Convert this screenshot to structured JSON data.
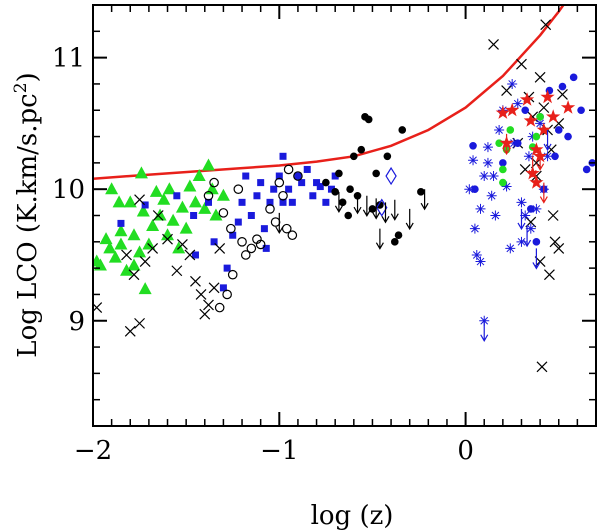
{
  "chart_data": {
    "type": "scatter",
    "title": "",
    "xlabel": "log (z)",
    "ylabel": "Log LCO (K.km/s.pc²)",
    "ylabel_parts": {
      "pre": "Log LCO (K.km/s.pc",
      "sup": "2",
      "post": ")"
    },
    "xlim": [
      -2.0,
      0.7
    ],
    "ylim": [
      8.2,
      11.4
    ],
    "xticks": [
      -2,
      -1,
      0
    ],
    "xtick_labels": [
      "−2",
      "−1",
      "0"
    ],
    "yticks": [
      9,
      10,
      11
    ],
    "ytick_labels": [
      "9",
      "10",
      "11"
    ],
    "grid": false,
    "legend": "none",
    "colors": {
      "curve": "#e8201a",
      "green": "#22dd22",
      "blue": "#1a1adc",
      "black": "#000000",
      "red": "#e8201a"
    },
    "curve": {
      "name": "detection limit",
      "x": [
        -2.0,
        -1.8,
        -1.6,
        -1.4,
        -1.2,
        -1.0,
        -0.8,
        -0.6,
        -0.4,
        -0.2,
        0.0,
        0.2,
        0.4,
        0.5,
        0.6,
        0.7
      ],
      "y": [
        10.08,
        10.1,
        10.12,
        10.14,
        10.16,
        10.18,
        10.21,
        10.25,
        10.33,
        10.45,
        10.62,
        10.86,
        11.17,
        11.35,
        11.55,
        11.78
      ]
    },
    "series": [
      {
        "name": "green triangles",
        "marker": "triangle",
        "color": "green",
        "points": [
          [
            -1.98,
            9.45
          ],
          [
            -1.96,
            9.42
          ],
          [
            -1.93,
            9.62
          ],
          [
            -1.91,
            9.55
          ],
          [
            -1.88,
            9.48
          ],
          [
            -1.85,
            9.58
          ],
          [
            -1.82,
            9.38
          ],
          [
            -1.85,
            9.68
          ],
          [
            -1.8,
            9.9
          ],
          [
            -1.78,
            9.65
          ],
          [
            -1.75,
            9.52
          ],
          [
            -1.73,
            9.83
          ],
          [
            -1.7,
            9.58
          ],
          [
            -1.68,
            9.72
          ],
          [
            -1.66,
            9.98
          ],
          [
            -1.64,
            9.8
          ],
          [
            -1.78,
            9.42
          ],
          [
            -1.72,
            9.24
          ],
          [
            -1.62,
            9.92
          ],
          [
            -1.59,
            10.0
          ],
          [
            -1.57,
            9.76
          ],
          [
            -1.54,
            9.55
          ],
          [
            -1.52,
            9.86
          ],
          [
            -1.5,
            9.7
          ],
          [
            -1.48,
            10.02
          ],
          [
            -1.45,
            9.9
          ],
          [
            -1.43,
            10.1
          ],
          [
            -1.4,
            9.85
          ],
          [
            -1.38,
            10.18
          ],
          [
            -1.36,
            10.0
          ],
          [
            -1.34,
            9.8
          ],
          [
            -1.9,
            10.0
          ],
          [
            -1.86,
            9.9
          ],
          [
            -1.74,
            10.12
          ],
          [
            -1.6,
            9.65
          ],
          [
            -1.3,
            9.95
          ]
        ]
      },
      {
        "name": "blue squares",
        "marker": "square",
        "color": "blue",
        "points": [
          [
            -1.85,
            9.74
          ],
          [
            -1.72,
            9.88
          ],
          [
            -1.55,
            9.95
          ],
          [
            -1.46,
            9.8
          ],
          [
            -1.38,
            9.9
          ],
          [
            -1.35,
            9.6
          ],
          [
            -1.28,
            9.4
          ],
          [
            -1.25,
            9.65
          ],
          [
            -1.22,
            9.75
          ],
          [
            -1.2,
            9.9
          ],
          [
            -1.18,
            10.1
          ],
          [
            -1.15,
            9.8
          ],
          [
            -1.12,
            9.95
          ],
          [
            -1.1,
            10.05
          ],
          [
            -1.08,
            9.7
          ],
          [
            -1.05,
            9.9
          ],
          [
            -1.03,
            10.0
          ],
          [
            -1.0,
            10.1
          ],
          [
            -0.98,
            10.25
          ],
          [
            -0.95,
            10.0
          ],
          [
            -0.93,
            9.9
          ],
          [
            -0.9,
            10.1
          ],
          [
            -0.88,
            10.05
          ],
          [
            -0.85,
            10.15
          ],
          [
            -0.82,
            9.95
          ],
          [
            -0.8,
            10.05
          ],
          [
            -0.78,
            10.02
          ],
          [
            -0.75,
            9.9
          ],
          [
            -0.72,
            10.0
          ],
          [
            -0.7,
            10.1
          ],
          [
            -1.45,
            9.5
          ],
          [
            -1.3,
            9.25
          ],
          [
            -0.98,
            9.9
          ],
          [
            -1.07,
            9.55
          ]
        ]
      },
      {
        "name": "open circles",
        "marker": "open-circle",
        "color": "black",
        "points": [
          [
            -1.38,
            9.95
          ],
          [
            -1.35,
            10.05
          ],
          [
            -1.3,
            9.82
          ],
          [
            -1.26,
            9.7
          ],
          [
            -1.22,
            10.0
          ],
          [
            -1.2,
            9.6
          ],
          [
            -1.18,
            9.5
          ],
          [
            -1.15,
            9.55
          ],
          [
            -1.12,
            9.62
          ],
          [
            -1.1,
            9.58
          ],
          [
            -1.05,
            9.85
          ],
          [
            -1.02,
            9.75
          ],
          [
            -0.98,
            9.95
          ],
          [
            -0.96,
            9.7
          ],
          [
            -0.93,
            9.65
          ],
          [
            -1.0,
            10.05
          ],
          [
            -0.9,
            10.1
          ],
          [
            -0.95,
            10.15
          ],
          [
            -1.25,
            9.35
          ],
          [
            -1.28,
            9.2
          ],
          [
            -1.32,
            9.1
          ]
        ]
      },
      {
        "name": "black filled circles",
        "marker": "filled-circle",
        "color": "black",
        "points": [
          [
            -0.75,
            10.05
          ],
          [
            -0.7,
            9.98
          ],
          [
            -0.68,
            10.12
          ],
          [
            -0.66,
            9.9
          ],
          [
            -0.63,
            9.8
          ],
          [
            -0.62,
            10.0
          ],
          [
            -0.6,
            10.25
          ],
          [
            -0.58,
            9.95
          ],
          [
            -0.56,
            10.3
          ],
          [
            -0.54,
            10.55
          ],
          [
            -0.52,
            10.53
          ],
          [
            -0.5,
            9.85
          ],
          [
            -0.48,
            10.12
          ],
          [
            -0.46,
            9.88
          ],
          [
            -0.42,
            10.25
          ],
          [
            -0.38,
            9.6
          ],
          [
            -0.36,
            9.65
          ],
          [
            -0.34,
            10.45
          ],
          [
            -0.24,
            9.98
          ]
        ]
      },
      {
        "name": "open diamonds",
        "marker": "open-diamond",
        "color": "blue",
        "points": [
          [
            -0.45,
            9.86
          ],
          [
            -0.4,
            10.1
          ]
        ]
      },
      {
        "name": "upper-limit arrows",
        "marker": "down-arrow",
        "color": "black",
        "points": [
          [
            -1.0,
            9.82
          ],
          [
            -0.68,
            9.98
          ],
          [
            -0.58,
            9.97
          ],
          [
            -0.53,
            9.95
          ],
          [
            -0.48,
            9.93
          ],
          [
            -0.43,
            9.9
          ],
          [
            -0.38,
            9.92
          ],
          [
            -0.3,
            9.85
          ],
          [
            -0.46,
            9.7
          ],
          [
            -0.22,
            10.0
          ]
        ]
      },
      {
        "name": "black crosses",
        "marker": "cross",
        "color": "black",
        "points": [
          [
            -1.98,
            9.1
          ],
          [
            -1.82,
            9.5
          ],
          [
            -1.78,
            9.35
          ],
          [
            -1.72,
            9.45
          ],
          [
            -1.68,
            9.55
          ],
          [
            -1.65,
            9.8
          ],
          [
            -1.6,
            9.62
          ],
          [
            -1.55,
            9.38
          ],
          [
            -1.52,
            9.58
          ],
          [
            -1.48,
            9.5
          ],
          [
            -1.45,
            9.3
          ],
          [
            -1.42,
            9.2
          ],
          [
            -1.4,
            9.05
          ],
          [
            -1.38,
            9.12
          ],
          [
            -1.35,
            9.25
          ],
          [
            -1.32,
            9.55
          ],
          [
            -1.75,
            9.92
          ],
          [
            -1.8,
            8.92
          ],
          [
            -1.75,
            8.98
          ],
          [
            0.15,
            11.1
          ],
          [
            0.22,
            10.75
          ],
          [
            0.28,
            10.35
          ],
          [
            0.3,
            10.95
          ],
          [
            0.32,
            10.15
          ],
          [
            0.34,
            10.7
          ],
          [
            0.36,
            10.55
          ],
          [
            0.38,
            10.2
          ],
          [
            0.4,
            10.85
          ],
          [
            0.42,
            10.62
          ],
          [
            0.44,
            10.45
          ],
          [
            0.46,
            10.3
          ],
          [
            0.48,
            9.6
          ],
          [
            0.5,
            10.5
          ],
          [
            0.35,
            9.75
          ],
          [
            0.4,
            9.45
          ],
          [
            0.45,
            9.35
          ],
          [
            0.47,
            9.8
          ],
          [
            0.5,
            9.55
          ],
          [
            0.52,
            10.72
          ],
          [
            0.41,
            8.65
          ],
          [
            0.43,
            11.25
          ],
          [
            0.38,
            10.1
          ]
        ]
      },
      {
        "name": "blue asterisks",
        "marker": "asterisk",
        "color": "blue",
        "points": [
          [
            0.02,
            10.0
          ],
          [
            0.05,
            9.7
          ],
          [
            0.06,
            9.5
          ],
          [
            0.08,
            9.45
          ],
          [
            0.1,
            10.1
          ],
          [
            0.12,
            10.2
          ],
          [
            0.14,
            9.95
          ],
          [
            0.16,
            9.8
          ],
          [
            0.18,
            10.45
          ],
          [
            0.2,
            10.6
          ],
          [
            0.22,
            10.02
          ],
          [
            0.24,
            9.55
          ],
          [
            0.26,
            10.35
          ],
          [
            0.28,
            10.65
          ],
          [
            0.3,
            9.9
          ],
          [
            0.32,
            9.8
          ],
          [
            0.34,
            10.25
          ],
          [
            0.36,
            10.4
          ],
          [
            0.38,
            9.85
          ],
          [
            0.4,
            10.5
          ],
          [
            0.42,
            10.0
          ],
          [
            0.44,
            10.25
          ],
          [
            0.1,
            9.0
          ],
          [
            0.3,
            9.6
          ],
          [
            0.35,
            9.7
          ],
          [
            0.12,
            10.32
          ],
          [
            0.08,
            9.85
          ],
          [
            0.04,
            10.22
          ],
          [
            0.15,
            10.1
          ],
          [
            0.25,
            10.8
          ]
        ]
      },
      {
        "name": "blue filled circles",
        "marker": "filled-circle",
        "color": "blue",
        "points": [
          [
            0.04,
            10.33
          ],
          [
            0.2,
            10.2
          ],
          [
            0.28,
            10.35
          ],
          [
            0.32,
            10.6
          ],
          [
            0.4,
            10.55
          ],
          [
            0.45,
            10.75
          ],
          [
            0.48,
            10.25
          ],
          [
            0.52,
            10.78
          ],
          [
            0.55,
            10.4
          ],
          [
            0.58,
            10.85
          ],
          [
            0.62,
            10.6
          ],
          [
            0.65,
            10.15
          ],
          [
            0.68,
            10.2
          ],
          [
            0.35,
            9.85
          ],
          [
            0.42,
            10.0
          ],
          [
            0.38,
            9.6
          ],
          [
            0.5,
            10.45
          ],
          [
            0.05,
            10.0
          ]
        ]
      },
      {
        "name": "green filled circles",
        "marker": "filled-circle",
        "color": "green",
        "points": [
          [
            0.18,
            10.35
          ],
          [
            0.22,
            10.3
          ],
          [
            0.2,
            10.15
          ],
          [
            0.24,
            10.45
          ],
          [
            0.38,
            10.4
          ],
          [
            0.4,
            10.55
          ],
          [
            0.36,
            10.32
          ],
          [
            0.2,
            10.05
          ]
        ]
      },
      {
        "name": "red stars",
        "marker": "star",
        "color": "red",
        "points": [
          [
            0.2,
            10.58
          ],
          [
            0.22,
            10.35
          ],
          [
            0.25,
            10.6
          ],
          [
            0.33,
            10.68
          ],
          [
            0.35,
            10.52
          ],
          [
            0.38,
            10.3
          ],
          [
            0.4,
            10.25
          ],
          [
            0.42,
            10.45
          ],
          [
            0.44,
            10.7
          ],
          [
            0.47,
            10.55
          ],
          [
            0.55,
            10.62
          ],
          [
            0.36,
            10.12
          ],
          [
            0.38,
            10.05
          ]
        ]
      },
      {
        "name": "red upper-limit arrows",
        "marker": "down-arrow",
        "color": "red",
        "points": [
          [
            0.22,
            10.42
          ],
          [
            0.36,
            10.25
          ],
          [
            0.4,
            10.3
          ],
          [
            0.42,
            10.05
          ]
        ]
      },
      {
        "name": "blue upper-limit arrows",
        "marker": "down-arrow",
        "color": "blue",
        "points": [
          [
            0.1,
            9.0
          ],
          [
            0.3,
            9.85
          ],
          [
            0.33,
            9.72
          ],
          [
            0.38,
            9.55
          ],
          [
            0.44,
            10.45
          ]
        ]
      }
    ]
  }
}
